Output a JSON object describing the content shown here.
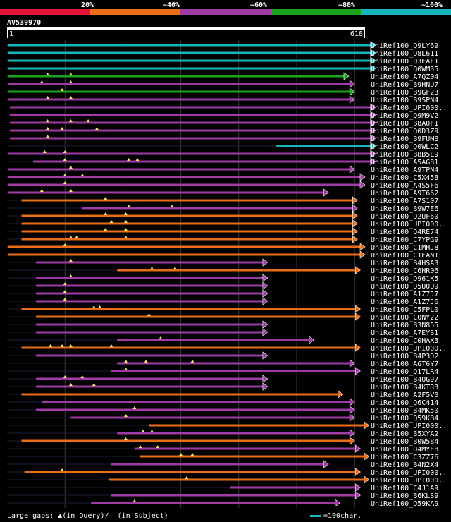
{
  "legend": {
    "labels": [
      "20%",
      "~40%",
      "~60%",
      "~80%",
      "~100%"
    ],
    "colors": [
      "#e3173b",
      "#e96e17",
      "#a03aa5",
      "#1aa31c",
      "#17b6bd"
    ]
  },
  "query": {
    "name": "AV539970",
    "start_label": "1",
    "end_label": "618",
    "length": 618
  },
  "footer": {
    "gaps_text": "Large gaps: ▲(in Query)/– (in Subject)",
    "scale_text": "=100char."
  },
  "chart_data": {
    "type": "alignment",
    "query_length": 618,
    "hits": [
      {
        "name": "UniRef100_Q9LY69",
        "color": "#17b6bd",
        "start": 1,
        "end": 636,
        "tris": []
      },
      {
        "name": "UniRef100_Q8L611",
        "color": "#17b6bd",
        "start": 1,
        "end": 636,
        "tris": []
      },
      {
        "name": "UniRef100_Q3EAF1",
        "color": "#17b6bd",
        "start": 1,
        "end": 636,
        "tris": []
      },
      {
        "name": "UniRef100_Q0WM35",
        "color": "#17b6bd",
        "start": 1,
        "end": 636,
        "tris": []
      },
      {
        "name": "UniRef100_A7QZ04",
        "color": "#1aa31c",
        "start": 1,
        "end": 590,
        "tris": [
          70,
          110
        ]
      },
      {
        "name": "UniRef100_B9HNU7",
        "color": "#a03aa5",
        "start": 1,
        "end": 600,
        "tris": [
          60,
          110
        ]
      },
      {
        "name": "UniRef100_B9GF23",
        "color": "#1aa31c",
        "start": 1,
        "end": 600,
        "tris": [
          95
        ]
      },
      {
        "name": "UniRef100_B9SPN4",
        "color": "#a03aa5",
        "start": 1,
        "end": 600,
        "tris": [
          70,
          110
        ]
      },
      {
        "name": "UniRef100_UPI000..",
        "color": "#a03aa5",
        "start": 5,
        "end": 636,
        "tris": []
      },
      {
        "name": "UniRef100_Q9M9V2",
        "color": "#a03aa5",
        "start": 5,
        "end": 636,
        "tris": []
      },
      {
        "name": "UniRef100_B8A0F1",
        "color": "#a03aa5",
        "start": 5,
        "end": 636,
        "tris": [
          70,
          110,
          140
        ]
      },
      {
        "name": "UniRef100_Q0D3Z9",
        "color": "#a03aa5",
        "start": 5,
        "end": 636,
        "tris": [
          70,
          95,
          155
        ]
      },
      {
        "name": "UniRef100_B9FUM8",
        "color": "#a03aa5",
        "start": 5,
        "end": 636,
        "tris": [
          70
        ]
      },
      {
        "name": "UniRef100_Q0WLC2",
        "color": "#17b6bd",
        "start": 465,
        "end": 636,
        "tris": []
      },
      {
        "name": "UniRef100_B8B5L9",
        "color": "#a03aa5",
        "start": 1,
        "end": 636,
        "tris": [
          65,
          100
        ]
      },
      {
        "name": "UniRef100_A5AG81",
        "color": "#a03aa5",
        "start": 45,
        "end": 636,
        "tris": [
          100,
          210,
          225
        ]
      },
      {
        "name": "UniRef100_A9TPN4",
        "color": "#a03aa5",
        "start": 1,
        "end": 600,
        "tris": [
          110
        ]
      },
      {
        "name": "UniRef100_C5X458",
        "color": "#a03aa5",
        "start": 1,
        "end": 618,
        "tris": [
          100,
          130
        ]
      },
      {
        "name": "UniRef100_A4S5F6",
        "color": "#a03aa5",
        "start": 1,
        "end": 618,
        "tris": [
          100
        ]
      },
      {
        "name": "UniRef100_A9T662",
        "color": "#a03aa5",
        "start": 1,
        "end": 555,
        "tris": [
          60,
          110
        ]
      },
      {
        "name": "UniRef100_A7S107",
        "color": "#e96e17",
        "start": 25,
        "end": 605,
        "tris": [
          170
        ]
      },
      {
        "name": "UniRef100_B9W7E6",
        "color": "#a03aa5",
        "start": 130,
        "end": 605,
        "tris": [
          210,
          285
        ]
      },
      {
        "name": "UniRef100_Q2UF60",
        "color": "#e96e17",
        "start": 25,
        "end": 605,
        "tris": [
          170,
          205
        ]
      },
      {
        "name": "UniRef100_UPI000..",
        "color": "#e96e17",
        "start": 25,
        "end": 605,
        "tris": [
          180,
          205
        ]
      },
      {
        "name": "UniRef100_Q4RE74",
        "color": "#e96e17",
        "start": 25,
        "end": 605,
        "tris": [
          170,
          205
        ]
      },
      {
        "name": "UniRef100_C7YPG9",
        "color": "#e96e17",
        "start": 25,
        "end": 605,
        "tris": [
          110,
          120,
          205
        ]
      },
      {
        "name": "UniRef100_C1MHJ8",
        "color": "#e96e17",
        "start": 1,
        "end": 618,
        "tris": [
          100
        ]
      },
      {
        "name": "UniRef100_C1EAN1",
        "color": "#e96e17",
        "start": 1,
        "end": 618,
        "tris": []
      },
      {
        "name": "UniRef100_B4HSA3",
        "color": "#a03aa5",
        "start": 50,
        "end": 450,
        "tris": [
          110
        ]
      },
      {
        "name": "UniRef100_C6HR06",
        "color": "#e96e17",
        "start": 190,
        "end": 610,
        "tris": [
          250,
          290
        ]
      },
      {
        "name": "UniRef100_Q961K5",
        "color": "#a03aa5",
        "start": 50,
        "end": 450,
        "tris": [
          110
        ]
      },
      {
        "name": "UniRef100_Q5U0U9",
        "color": "#a03aa5",
        "start": 50,
        "end": 450,
        "tris": [
          100
        ]
      },
      {
        "name": "UniRef100_A1Z7J7",
        "color": "#a03aa5",
        "start": 50,
        "end": 450,
        "tris": [
          100
        ]
      },
      {
        "name": "UniRef100_A1Z7J6",
        "color": "#a03aa5",
        "start": 50,
        "end": 450,
        "tris": [
          100
        ]
      },
      {
        "name": "UniRef100_C5FPL0",
        "color": "#e96e17",
        "start": 25,
        "end": 610,
        "tris": [
          150,
          160
        ]
      },
      {
        "name": "UniRef100_C0NY22",
        "color": "#e96e17",
        "start": 50,
        "end": 610,
        "tris": [
          245
        ]
      },
      {
        "name": "UniRef100_B3N855",
        "color": "#a03aa5",
        "start": 50,
        "end": 450,
        "tris": []
      },
      {
        "name": "UniRef100_A7EYS1",
        "color": "#a03aa5",
        "start": 50,
        "end": 450,
        "tris": []
      },
      {
        "name": "UniRef100_C0HAX3",
        "color": "#a03aa5",
        "start": 190,
        "end": 530,
        "tris": [
          265
        ]
      },
      {
        "name": "UniRef100_UPI000..",
        "color": "#e96e17",
        "start": 25,
        "end": 610,
        "tris": [
          75,
          95,
          110,
          180
        ]
      },
      {
        "name": "UniRef100_B4P3D2",
        "color": "#a03aa5",
        "start": 50,
        "end": 450,
        "tris": []
      },
      {
        "name": "UniRef100_A6T6Y7",
        "color": "#a03aa5",
        "start": 190,
        "end": 600,
        "tris": [
          205,
          240,
          320
        ]
      },
      {
        "name": "UniRef100_Q17LR4",
        "color": "#a03aa5",
        "start": 180,
        "end": 610,
        "tris": [
          205
        ]
      },
      {
        "name": "UniRef100_B4QG97",
        "color": "#a03aa5",
        "start": 50,
        "end": 450,
        "tris": [
          100,
          130
        ]
      },
      {
        "name": "UniRef100_B4KTR3",
        "color": "#a03aa5",
        "start": 50,
        "end": 450,
        "tris": [
          110,
          150
        ]
      },
      {
        "name": "UniRef100_A2F5V0",
        "color": "#e96e17",
        "start": 25,
        "end": 580,
        "tris": []
      },
      {
        "name": "UniRef100_Q6C414",
        "color": "#a03aa5",
        "start": 60,
        "end": 600,
        "tris": []
      },
      {
        "name": "UniRef100_B4MK50",
        "color": "#a03aa5",
        "start": 50,
        "end": 600,
        "tris": [
          220
        ]
      },
      {
        "name": "UniRef100_Q59KB4",
        "color": "#a03aa5",
        "start": 110,
        "end": 600,
        "tris": [
          205
        ]
      },
      {
        "name": "UniRef100_UPI000..",
        "color": "#e96e17",
        "start": 245,
        "end": 625,
        "tris": []
      },
      {
        "name": "UniRef100_B5XYA2",
        "color": "#a03aa5",
        "start": 190,
        "end": 600,
        "tris": [
          235,
          250
        ]
      },
      {
        "name": "UniRef100_B0W584",
        "color": "#e96e17",
        "start": 25,
        "end": 600,
        "tris": [
          205
        ]
      },
      {
        "name": "UniRef100_Q4MYE8",
        "color": "#a03aa5",
        "start": 220,
        "end": 610,
        "tris": [
          230,
          260
        ]
      },
      {
        "name": "UniRef100_C3ZZ76",
        "color": "#e96e17",
        "start": 230,
        "end": 625,
        "tris": [
          300,
          320
        ]
      },
      {
        "name": "UniRef100_B4N2X4",
        "color": "#a03aa5",
        "start": 180,
        "end": 555,
        "tris": []
      },
      {
        "name": "UniRef100_UPI000..",
        "color": "#e96e17",
        "start": 30,
        "end": 610,
        "tris": [
          95
        ]
      },
      {
        "name": "UniRef100_UPI000..",
        "color": "#e96e17",
        "start": 175,
        "end": 625,
        "tris": [
          310
        ]
      },
      {
        "name": "UniRef100_C4J1A9",
        "color": "#a03aa5",
        "start": 385,
        "end": 610,
        "tris": []
      },
      {
        "name": "UniRef100_B6KLS9",
        "color": "#a03aa5",
        "start": 180,
        "end": 610,
        "tris": []
      },
      {
        "name": "UniRef100_Q59KA9",
        "color": "#a03aa5",
        "start": 145,
        "end": 575,
        "tris": [
          220
        ]
      }
    ]
  }
}
